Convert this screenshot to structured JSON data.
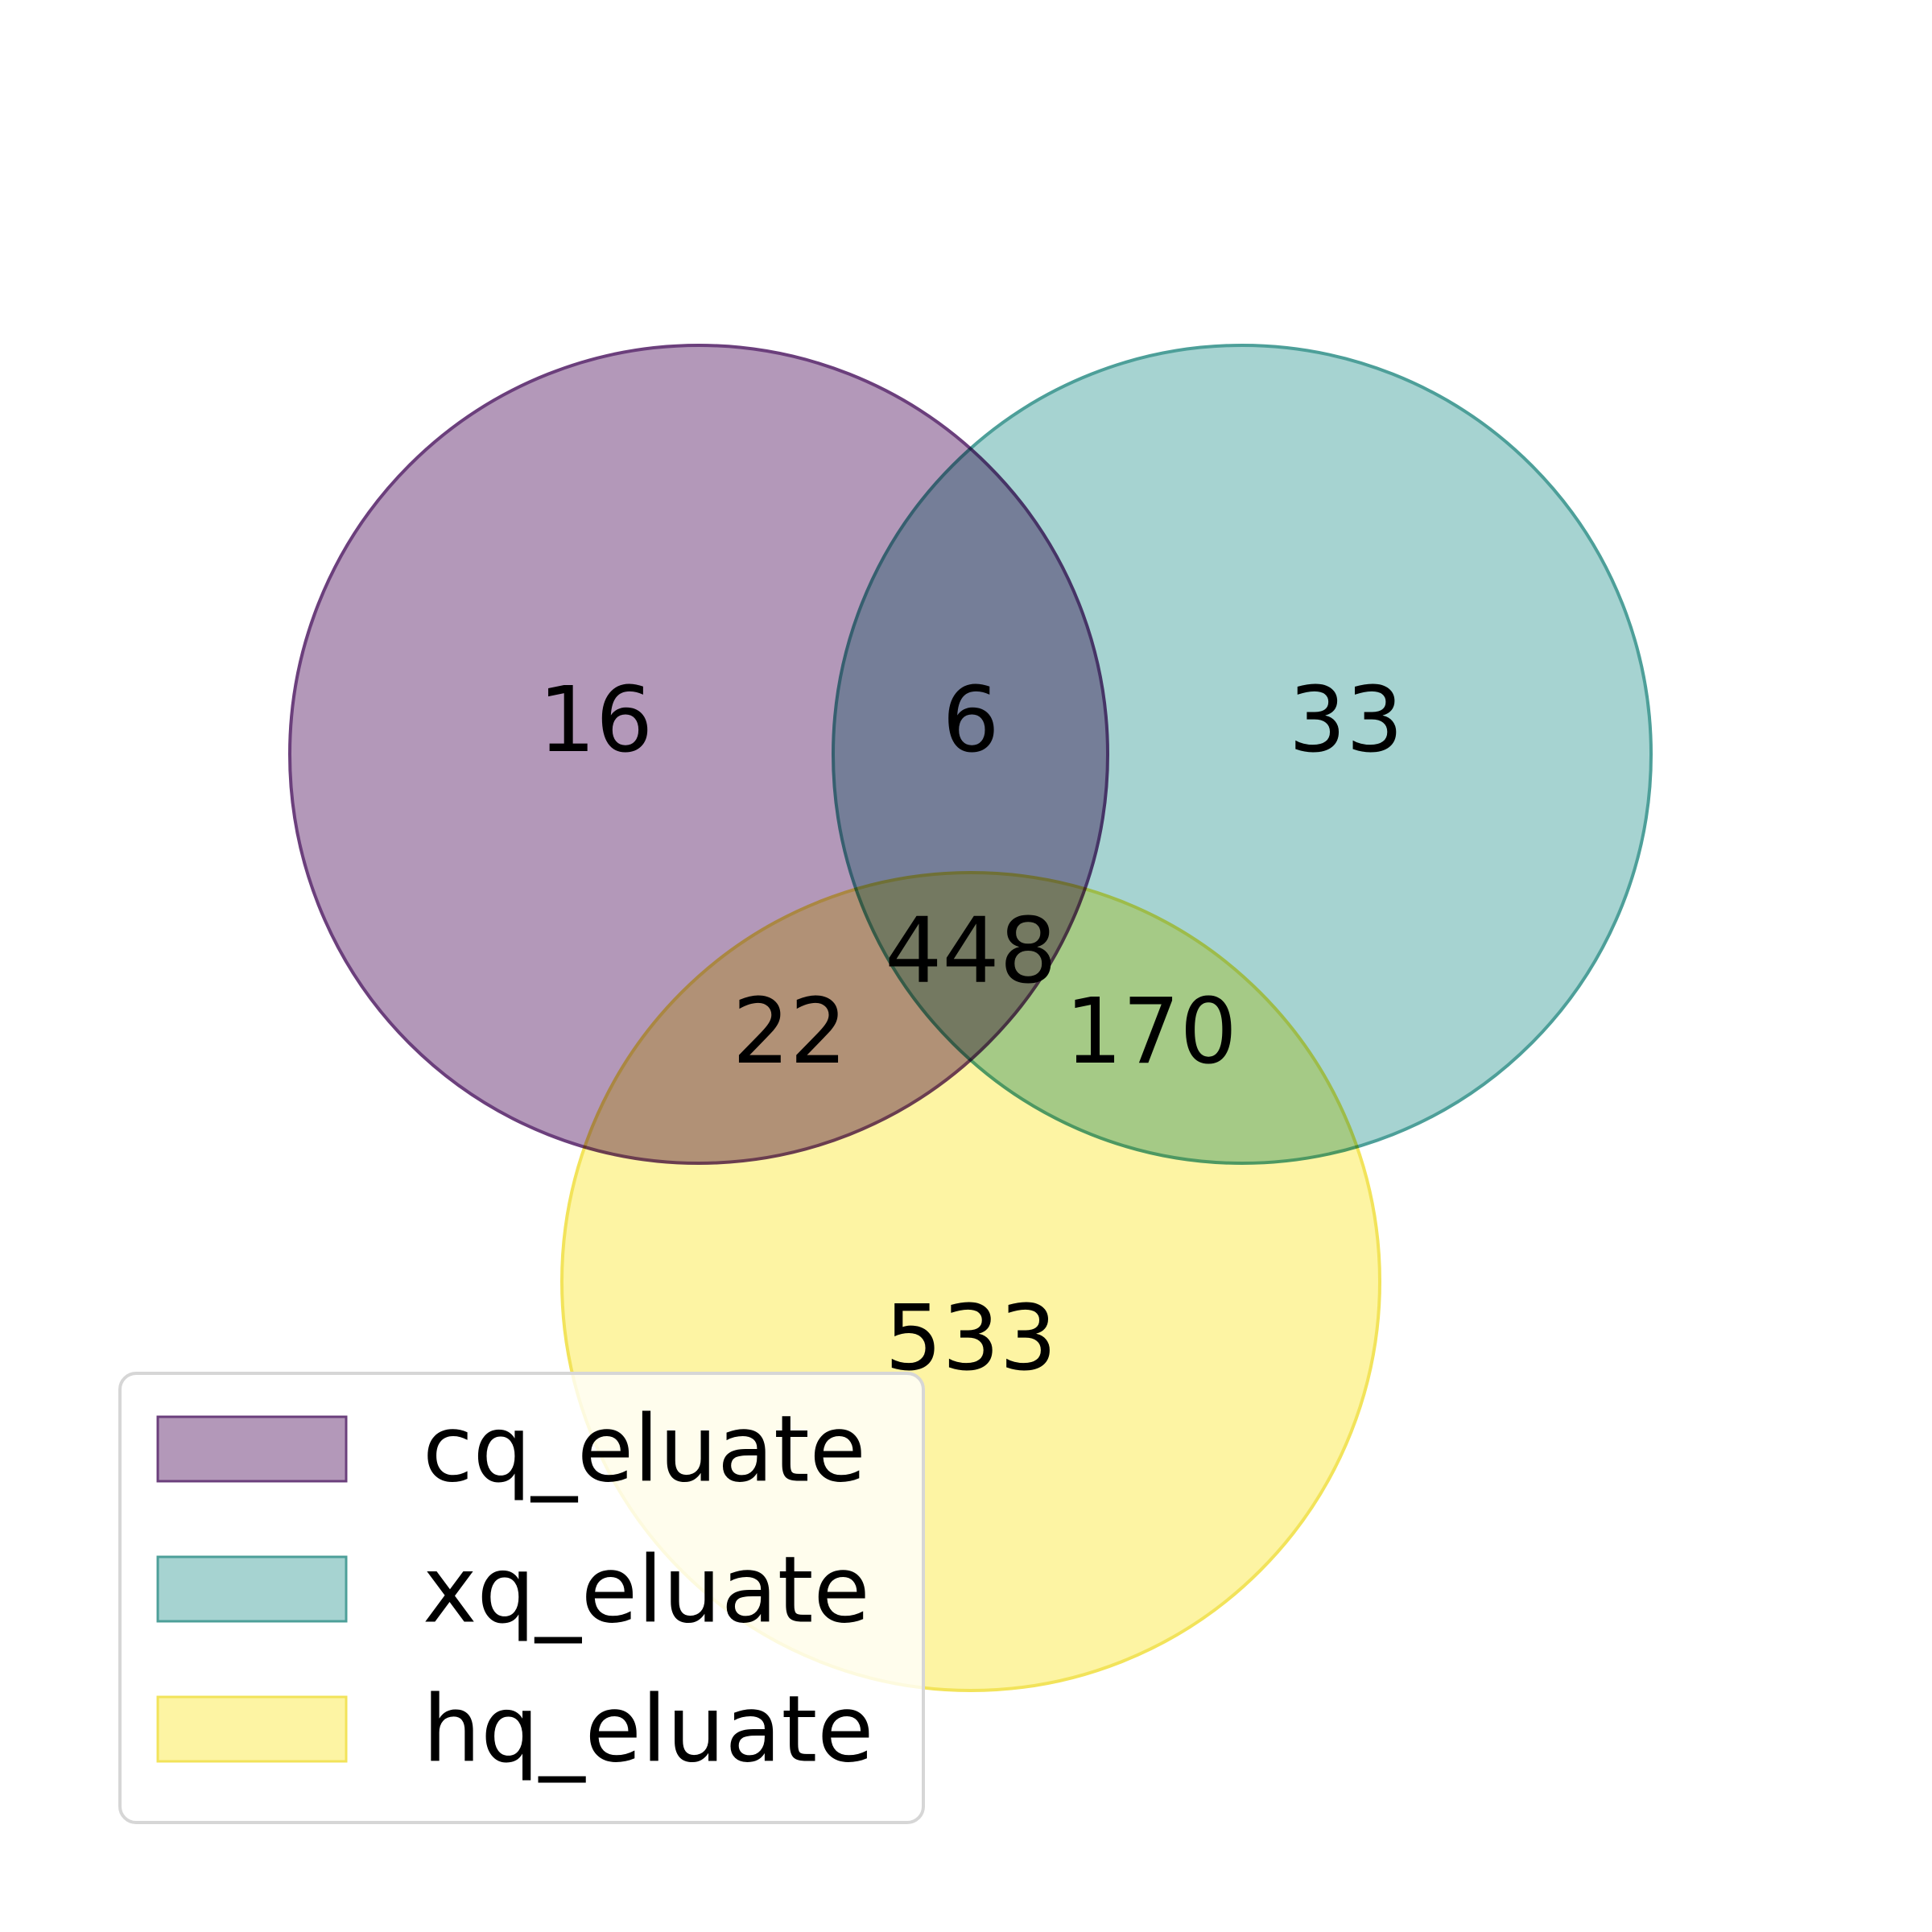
{
  "chart_data": {
    "type": "venn3",
    "sets": [
      {
        "name": "cq_eluate",
        "color": "#b398b9",
        "edge": "#6b3f7c"
      },
      {
        "name": "xq_eluate",
        "color": "#a6d3d1",
        "edge": "#4d9f99"
      },
      {
        "name": "hq_eluate",
        "color": "#fdf4a3",
        "edge": "#f2e35a"
      }
    ],
    "regions": {
      "cq_only": "16",
      "cq_xq": "6",
      "xq_only": "33",
      "cq_xq_hq": "448",
      "cq_hq": "22",
      "xq_hq": "170",
      "hq_only": "533"
    },
    "legend_position": "lower-left",
    "title": ""
  }
}
